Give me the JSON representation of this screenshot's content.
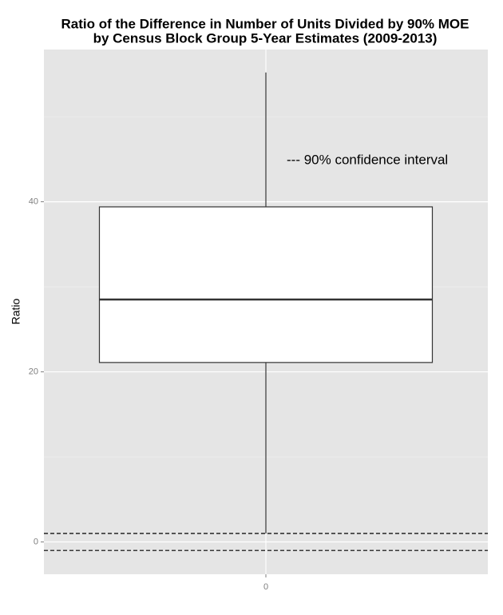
{
  "chart_data": {
    "type": "box",
    "title": [
      "Ratio of the Difference in Number of Units Divided by 90% MOE",
      "by Census Block Group 5-Year Estimates (2009-2013)"
    ],
    "y_label": "Ratio",
    "categories": [
      "0"
    ],
    "boxes": [
      {
        "whisker_low": 1,
        "q1": 21.1,
        "median": 28.5,
        "q3": 39.4,
        "whisker_high": 55.2
      }
    ],
    "hlines": [
      1,
      -1
    ],
    "hline_style": "dashed",
    "annotation": "--- 90% confidence interval",
    "ylim": [
      -3.8,
      57.9
    ],
    "yticks": [
      0,
      20,
      40
    ],
    "minor_yticks": [
      10,
      30,
      50
    ],
    "grid": true,
    "color": "#ffffff"
  }
}
